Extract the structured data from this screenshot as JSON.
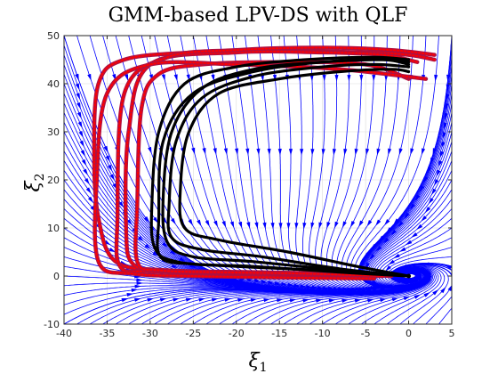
{
  "chart_data": {
    "type": "line",
    "title": "GMM-based LPV-DS with QLF",
    "xlabel": "ξ",
    "xlabel_subscript": "1",
    "ylabel": "ξ",
    "ylabel_subscript": "2",
    "xlim": [
      -40,
      5
    ],
    "ylim": [
      -10,
      50
    ],
    "xticks": [
      "-40",
      "-35",
      "-30",
      "-25",
      "-20",
      "-15",
      "-10",
      "-5",
      "0",
      "5"
    ],
    "yticks": [
      "-10",
      "0",
      "10",
      "20",
      "30",
      "40",
      "50"
    ],
    "grid": true,
    "attractor": [
      0,
      0
    ],
    "colors": {
      "streamlines": "#0000ff",
      "reproductions": "#000000",
      "demonstrations_edge": "#ff0000",
      "demonstrations_fill": "#b01040"
    },
    "series": [
      {
        "kind": "demonstration",
        "x": [
          -2,
          -8,
          -18,
          -28,
          -34,
          -36,
          -36.5,
          -36,
          -33,
          -25,
          -15,
          -5,
          0,
          3
        ],
        "y": [
          0,
          0.5,
          0.8,
          1.2,
          3,
          12,
          25,
          40,
          45,
          46.5,
          46.8,
          46.5,
          46,
          45
        ]
      },
      {
        "kind": "demonstration",
        "x": [
          -3,
          -10,
          -20,
          -28,
          -32,
          -32.8,
          -32.5,
          -30,
          -20,
          -10,
          -3,
          1
        ],
        "y": [
          0,
          0.2,
          0.5,
          1,
          2.5,
          10,
          30,
          44,
          46.5,
          46.5,
          46,
          44.5
        ]
      },
      {
        "kind": "demonstration",
        "x": [
          -5,
          -12,
          -22,
          -30,
          -33.5,
          -33.8,
          -33,
          -28,
          -20,
          -10,
          -2,
          3
        ],
        "y": [
          0,
          0.5,
          0.8,
          1,
          2,
          12,
          38,
          45.5,
          47,
          47.5,
          47,
          46
        ]
      },
      {
        "kind": "demonstration",
        "x": [
          -3,
          -12,
          -22,
          -29,
          -31.5,
          -31.5,
          -31,
          -29,
          -24,
          -15,
          -5,
          0
        ],
        "y": [
          0,
          0.5,
          0.8,
          1.2,
          3,
          15,
          35,
          42,
          44,
          44.5,
          44,
          41
        ]
      },
      {
        "kind": "demonstration",
        "x": [
          -4,
          -15,
          -25,
          -32,
          -36,
          -36.2,
          -35,
          -30,
          -20,
          -8,
          2
        ],
        "y": [
          -0.5,
          -0.3,
          0,
          0.5,
          3,
          20,
          38,
          44,
          44,
          43,
          41
        ]
      },
      {
        "kind": "reproduction",
        "x": [
          0,
          -8,
          -20,
          -27,
          -29.5,
          -29.8,
          -29,
          -26,
          -20,
          -12,
          -4,
          0
        ],
        "y": [
          0,
          1,
          2,
          3,
          6,
          15,
          30,
          40,
          43.5,
          45,
          45.5,
          45
        ]
      },
      {
        "kind": "reproduction",
        "x": [
          0,
          -8,
          -18,
          -25,
          -28,
          -28.5,
          -27.5,
          -24,
          -18,
          -10,
          -3,
          0
        ],
        "y": [
          0,
          1.2,
          3,
          4,
          7,
          16,
          30,
          39,
          43,
          44.5,
          45,
          44.5
        ]
      },
      {
        "kind": "reproduction",
        "x": [
          0,
          -6,
          -14,
          -22,
          -26,
          -26.5,
          -25.5,
          -22,
          -15,
          -8,
          -2,
          0
        ],
        "y": [
          0,
          2,
          5,
          7.5,
          10,
          18,
          30,
          38,
          41,
          42.5,
          43,
          42.5
        ]
      },
      {
        "kind": "reproduction",
        "x": [
          0,
          -8,
          -18,
          -25,
          -28.8,
          -29,
          -28.5,
          -25,
          -18,
          -10,
          -3,
          0
        ],
        "y": [
          0,
          0.8,
          2,
          2.5,
          4,
          12,
          28,
          38,
          42.5,
          44.5,
          45,
          44
        ]
      },
      {
        "kind": "reproduction",
        "x": [
          0,
          -8,
          -17,
          -24,
          -27.5,
          -27.8,
          -27,
          -24,
          -18,
          -10,
          -4,
          0
        ],
        "y": [
          0,
          1.5,
          4,
          5.5,
          8,
          15,
          28,
          37,
          41.5,
          43.5,
          44,
          43.5
        ]
      }
    ]
  }
}
